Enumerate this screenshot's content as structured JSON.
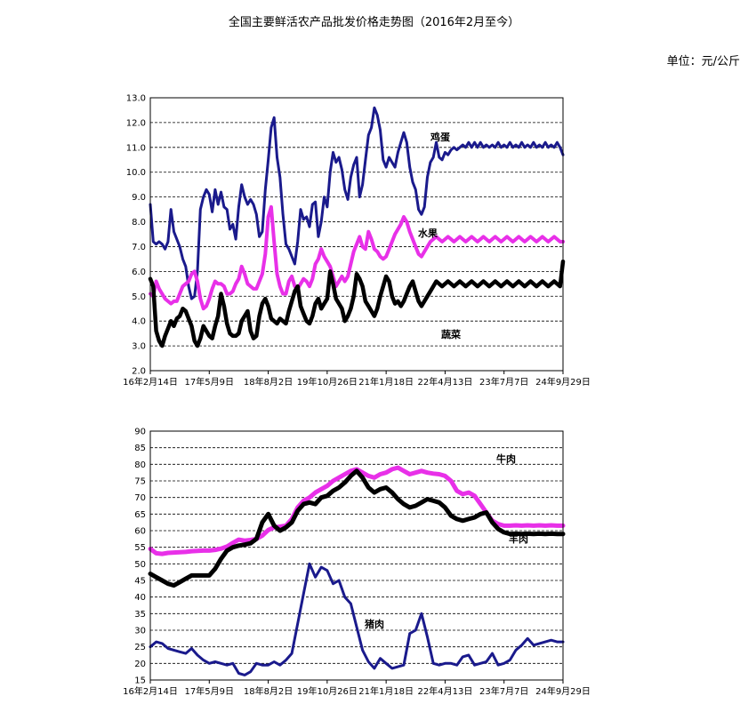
{
  "title": "全国主要鲜活农产品批发价格走势图（2016年2月至今）",
  "unit": "单位：元/公斤",
  "colors": {
    "egg": "#1a1a8c",
    "fruit": "#e830e8",
    "veg": "#000000",
    "beef": "#e830e8",
    "mutton": "#000000",
    "pork": "#1a1a8c"
  },
  "chart_data": [
    {
      "type": "line",
      "xlabel": "",
      "ylabel": "",
      "ylim": [
        2.0,
        13.0
      ],
      "yticks": [
        "2.0",
        "3.0",
        "4.0",
        "5.0",
        "6.0",
        "7.0",
        "8.0",
        "9.0",
        "10.0",
        "11.0",
        "12.0",
        "13.0"
      ],
      "xticks": [
        "16年2月14日",
        "17年5月9日",
        "18年8月2日",
        "19年10月26日",
        "21年1月18日",
        "22年4月13日",
        "23年7月7日",
        "24年9月29日"
      ],
      "x": [
        0,
        0.25,
        0.5,
        0.75,
        1,
        1.25,
        1.5,
        1.75,
        2,
        2.25,
        2.5,
        2.75,
        3,
        3.25,
        3.5,
        3.75,
        4,
        4.25,
        4.5,
        4.75,
        5,
        5.25,
        5.5,
        5.75,
        6,
        6.25,
        6.5,
        6.75,
        7,
        7.25,
        7.5,
        7.75,
        8,
        8.25,
        8.5,
        8.75,
        9,
        9.25,
        9.5,
        9.75,
        10,
        10.25,
        10.5,
        10.75,
        11,
        11.25,
        11.5,
        11.75,
        12,
        12.25,
        12.5,
        12.75,
        13,
        13.25,
        13.5,
        13.75,
        14,
        14.25,
        14.5,
        14.75,
        15,
        15.25,
        15.5,
        15.75,
        16,
        16.25,
        16.5,
        16.75,
        17,
        17.25,
        17.5,
        17.75,
        18,
        18.25,
        18.5,
        18.75,
        19,
        19.25,
        19.5,
        19.75,
        20,
        20.25,
        20.5,
        20.75,
        21,
        21.25,
        21.5,
        21.75,
        22,
        22.25,
        22.5,
        22.75,
        23,
        23.25,
        23.5,
        23.75,
        24,
        24.25,
        24.5,
        24.75,
        25,
        25.25,
        25.5,
        25.75,
        26,
        26.25,
        26.5,
        26.75,
        27,
        27.25,
        27.5,
        27.75,
        28,
        28.25,
        28.5,
        28.75,
        29,
        29.25,
        29.5,
        29.75,
        30,
        30.25,
        30.5,
        30.75,
        31,
        31.25,
        31.5,
        31.75,
        32,
        32.25,
        32.5,
        32.75,
        33,
        33.25,
        33.5,
        33.75,
        34,
        34.25,
        34.5,
        34.75,
        35
      ],
      "series": [
        {
          "name": "鸡蛋",
          "values": [
            8.7,
            7.2,
            7.1,
            7.2,
            7.1,
            6.9,
            7.2,
            8.5,
            7.6,
            7.3,
            7.0,
            6.5,
            6.2,
            5.4,
            4.9,
            5.0,
            6.0,
            8.5,
            9.0,
            9.3,
            9.1,
            8.4,
            9.3,
            8.7,
            9.2,
            8.6,
            8.5,
            7.7,
            7.9,
            7.3,
            8.6,
            9.5,
            9.0,
            8.7,
            8.9,
            8.7,
            8.3,
            7.4,
            7.6,
            9.3,
            10.5,
            11.8,
            12.2,
            10.6,
            9.8,
            8.3,
            7.1,
            6.9,
            6.6,
            6.3,
            7.2,
            8.5,
            8.1,
            8.2,
            7.8,
            8.7,
            8.8,
            7.4,
            8.0,
            9.0,
            8.6,
            10.0,
            10.8,
            10.4,
            10.6,
            10.1,
            9.3,
            8.9,
            9.8,
            10.3,
            10.6,
            9.0,
            9.5,
            10.5,
            11.5,
            11.8,
            12.6,
            12.3,
            11.7,
            10.5,
            10.2,
            10.6,
            10.4,
            10.2,
            10.8,
            11.2,
            11.6,
            11.2,
            10.2,
            9.6,
            9.3,
            8.5,
            8.3,
            8.6,
            9.8,
            10.4,
            10.6,
            11.2,
            10.6,
            10.5,
            10.8,
            10.7,
            10.9,
            11.0,
            10.9,
            11.0,
            11.1,
            11.0,
            11.2,
            11.0,
            11.2,
            11.0,
            11.2,
            11.0,
            11.1,
            11.0,
            11.1,
            11.0,
            11.2,
            11.0,
            11.1,
            11.0,
            11.2,
            11.0,
            11.1,
            11.0,
            11.2,
            11.0,
            11.1,
            11.0,
            11.2,
            11.0,
            11.1,
            11.0,
            11.2,
            11.0,
            11.1,
            11.0,
            11.2,
            11.0,
            10.7
          ]
        },
        {
          "name": "水果",
          "values": [
            5.1,
            5.0,
            5.6,
            5.3,
            5.1,
            4.9,
            4.8,
            4.7,
            4.8,
            4.8,
            5.1,
            5.4,
            5.5,
            5.6,
            5.9,
            6.0,
            5.6,
            4.9,
            4.5,
            4.6,
            4.9,
            5.3,
            5.6,
            5.5,
            5.5,
            5.4,
            5.1,
            5.1,
            5.2,
            5.5,
            5.7,
            6.2,
            5.9,
            5.5,
            5.4,
            5.3,
            5.3,
            5.6,
            5.9,
            6.7,
            8.2,
            8.6,
            7.2,
            5.9,
            5.4,
            5.1,
            5.1,
            5.6,
            5.8,
            5.4,
            5.3,
            5.5,
            5.7,
            5.6,
            5.4,
            5.7,
            6.3,
            6.5,
            6.9,
            6.6,
            6.4,
            6.2,
            5.8,
            5.4,
            5.6,
            5.8,
            5.6,
            5.8,
            6.3,
            6.8,
            7.1,
            7.4,
            7.0,
            6.9,
            7.6,
            7.3,
            6.9,
            6.8,
            6.6,
            6.5,
            6.6,
            6.9,
            7.2,
            7.5,
            7.7,
            7.9,
            8.2,
            8.0,
            7.6,
            7.3,
            7.0,
            6.7,
            6.6,
            6.8,
            7.0,
            7.2,
            7.3,
            7.4,
            7.3,
            7.2,
            7.3,
            7.4,
            7.3,
            7.2,
            7.3,
            7.4,
            7.3,
            7.2,
            7.3,
            7.4,
            7.3,
            7.2,
            7.3,
            7.4,
            7.3,
            7.2,
            7.3,
            7.4,
            7.3,
            7.2,
            7.3,
            7.4,
            7.3,
            7.2,
            7.3,
            7.4,
            7.3,
            7.2,
            7.3,
            7.4,
            7.3,
            7.2,
            7.3,
            7.4,
            7.3,
            7.2,
            7.3,
            7.4,
            7.3,
            7.2,
            7.2
          ]
        },
        {
          "name": "蔬菜",
          "values": [
            5.7,
            5.4,
            3.6,
            3.2,
            3.0,
            3.4,
            3.7,
            4.0,
            3.8,
            4.1,
            4.2,
            4.5,
            4.4,
            4.1,
            3.8,
            3.2,
            3.0,
            3.3,
            3.8,
            3.6,
            3.4,
            3.3,
            3.8,
            4.2,
            5.1,
            4.6,
            3.9,
            3.5,
            3.4,
            3.4,
            3.5,
            4.0,
            4.2,
            4.4,
            3.6,
            3.3,
            3.4,
            4.2,
            4.7,
            4.9,
            4.6,
            4.1,
            4.0,
            3.9,
            4.1,
            4.0,
            3.9,
            4.4,
            4.8,
            5.2,
            5.4,
            4.6,
            4.3,
            4.0,
            3.9,
            4.2,
            4.7,
            4.9,
            4.5,
            4.7,
            4.9,
            6.0,
            5.5,
            4.9,
            4.7,
            4.5,
            4.0,
            4.2,
            4.5,
            5.0,
            5.9,
            5.7,
            5.4,
            4.8,
            4.6,
            4.4,
            4.2,
            4.5,
            5.0,
            5.4,
            5.8,
            5.6,
            5.0,
            4.7,
            4.8,
            4.6,
            4.8,
            5.1,
            5.4,
            5.6,
            5.2,
            4.8,
            4.6,
            4.8,
            5.0,
            5.2,
            5.4,
            5.6,
            5.5,
            5.4,
            5.5,
            5.6,
            5.5,
            5.4,
            5.5,
            5.6,
            5.5,
            5.4,
            5.5,
            5.6,
            5.5,
            5.4,
            5.5,
            5.6,
            5.5,
            5.4,
            5.5,
            5.6,
            5.5,
            5.4,
            5.5,
            5.6,
            5.5,
            5.4,
            5.5,
            5.6,
            5.5,
            5.4,
            5.5,
            5.6,
            5.5,
            5.4,
            5.5,
            5.6,
            5.5,
            5.4,
            5.5,
            5.6,
            5.5,
            5.4,
            6.4
          ]
        }
      ]
    },
    {
      "type": "line",
      "xlabel": "",
      "ylabel": "",
      "ylim": [
        15,
        90
      ],
      "yticks": [
        "15",
        "20",
        "25",
        "30",
        "35",
        "40",
        "45",
        "50",
        "55",
        "60",
        "65",
        "70",
        "75",
        "80",
        "85",
        "90"
      ],
      "xticks": [
        "16年2月14日",
        "17年5月9日",
        "18年8月2日",
        "19年10月26日",
        "21年1月18日",
        "22年4月13日",
        "23年7月7日",
        "24年9月29日"
      ],
      "x": [
        0,
        0.5,
        1,
        1.5,
        2,
        2.5,
        3,
        3.5,
        4,
        4.5,
        5,
        5.5,
        6,
        6.5,
        7,
        7.5,
        8,
        8.5,
        9,
        9.5,
        10,
        10.5,
        11,
        11.5,
        12,
        12.5,
        13,
        13.5,
        14,
        14.5,
        15,
        15.5,
        16,
        16.5,
        17,
        17.5,
        18,
        18.5,
        19,
        19.5,
        20,
        20.5,
        21,
        21.5,
        22,
        22.5,
        23,
        23.5,
        24,
        24.5,
        25,
        25.5,
        26,
        26.5,
        27,
        27.5,
        28,
        28.5,
        29,
        29.5,
        30,
        30.5,
        31,
        31.5,
        32,
        32.5,
        33,
        33.5,
        34,
        34.5,
        35
      ],
      "series": [
        {
          "name": "牛肉",
          "values": [
            54.5,
            53.2,
            53.0,
            53.3,
            53.4,
            53.5,
            53.6,
            53.8,
            53.9,
            54.0,
            54.0,
            54.2,
            54.6,
            55.2,
            56.3,
            57.3,
            57.0,
            57.2,
            57.5,
            58.5,
            60.2,
            61.0,
            61.2,
            61.5,
            63.5,
            67.0,
            69.0,
            70.0,
            71.5,
            72.5,
            73.5,
            75.0,
            76.0,
            77.0,
            78.0,
            78.5,
            77.5,
            76.5,
            76.0,
            77.0,
            77.5,
            78.5,
            79.0,
            78.0,
            77.0,
            77.5,
            78.0,
            77.5,
            77.2,
            77.0,
            76.5,
            75.0,
            72.0,
            71.0,
            71.5,
            70.5,
            68.0,
            65.5,
            63.0,
            62.0,
            61.5,
            61.5,
            61.6,
            61.5,
            61.6,
            61.5,
            61.6,
            61.5,
            61.6,
            61.5,
            61.5
          ]
        },
        {
          "name": "羊肉",
          "values": [
            47.0,
            46.0,
            45.0,
            44.0,
            43.5,
            44.5,
            45.5,
            46.5,
            46.5,
            46.5,
            46.5,
            48.5,
            51.5,
            54.0,
            55.0,
            55.5,
            55.8,
            56.2,
            57.5,
            62.5,
            65.0,
            61.5,
            60.0,
            61.0,
            62.5,
            66.0,
            68.0,
            68.5,
            68.0,
            70.0,
            70.5,
            72.0,
            73.0,
            74.5,
            76.5,
            78.0,
            76.0,
            73.0,
            71.5,
            72.5,
            73.0,
            71.5,
            69.5,
            68.0,
            67.0,
            67.5,
            68.5,
            69.5,
            69.0,
            68.5,
            67.0,
            64.5,
            63.5,
            63.0,
            63.5,
            64.0,
            65.0,
            65.5,
            62.5,
            60.5,
            59.5,
            59.0,
            59.1,
            59.0,
            59.1,
            59.0,
            59.1,
            59.0,
            59.1,
            59.0,
            59.0
          ]
        },
        {
          "name": "猪肉",
          "values": [
            25.0,
            26.5,
            26.0,
            24.5,
            24.0,
            23.5,
            23.0,
            24.5,
            22.5,
            21.0,
            20.0,
            20.5,
            20.0,
            19.5,
            20.0,
            17.0,
            16.5,
            17.5,
            20.0,
            19.5,
            19.5,
            20.5,
            19.5,
            21.0,
            23.0,
            32.0,
            41.0,
            50.0,
            46.0,
            49.0,
            48.0,
            44.0,
            45.0,
            40.0,
            38.0,
            31.0,
            24.0,
            20.5,
            18.5,
            21.5,
            20.0,
            18.5,
            19.0,
            19.5,
            29.0,
            30.0,
            35.0,
            28.0,
            20.0,
            19.5,
            20.0,
            20.0,
            19.5,
            22.0,
            22.5,
            19.5,
            20.0,
            20.5,
            23.0,
            19.5,
            20.0,
            21.0,
            24.0,
            25.5,
            27.5,
            25.5,
            26.0,
            26.5,
            27.0,
            26.5,
            26.5
          ]
        }
      ]
    }
  ]
}
